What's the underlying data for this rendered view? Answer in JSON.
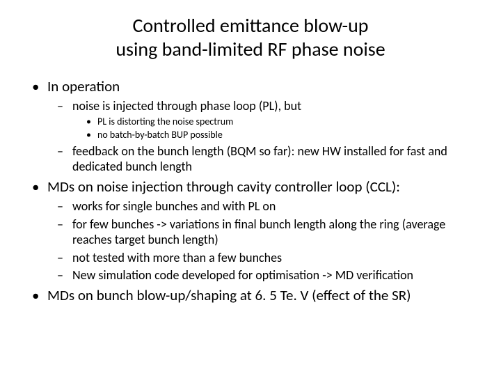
{
  "title_line1": "Controlled emittance blow-up",
  "title_line2": "using band-limited RF phase noise",
  "bullets": {
    "b1": {
      "text": "In operation",
      "sub": {
        "s1": {
          "text": "noise is injected through phase loop (PL), but",
          "sub": {
            "t1": "PL is distorting the noise spectrum",
            "t2": "no batch-by-batch BUP possible"
          }
        },
        "s2": {
          "text": "feedback on the bunch length (BQM so far): new HW installed for fast and dedicated bunch length"
        }
      }
    },
    "b2": {
      "text": "MDs on noise injection through cavity controller loop (CCL):",
      "sub": {
        "s1": {
          "text": "works for single bunches and with PL on"
        },
        "s2": {
          "text": "for few bunches -> variations in final bunch length along the ring (average reaches target bunch length)"
        },
        "s3": {
          "text": "not tested with more than a few bunches"
        },
        "s4": {
          "text": "New simulation code developed for optimisation -> MD verification"
        }
      }
    },
    "b3": {
      "text": "MDs on bunch blow-up/shaping at 6. 5 Te. V (effect of the SR)"
    }
  }
}
